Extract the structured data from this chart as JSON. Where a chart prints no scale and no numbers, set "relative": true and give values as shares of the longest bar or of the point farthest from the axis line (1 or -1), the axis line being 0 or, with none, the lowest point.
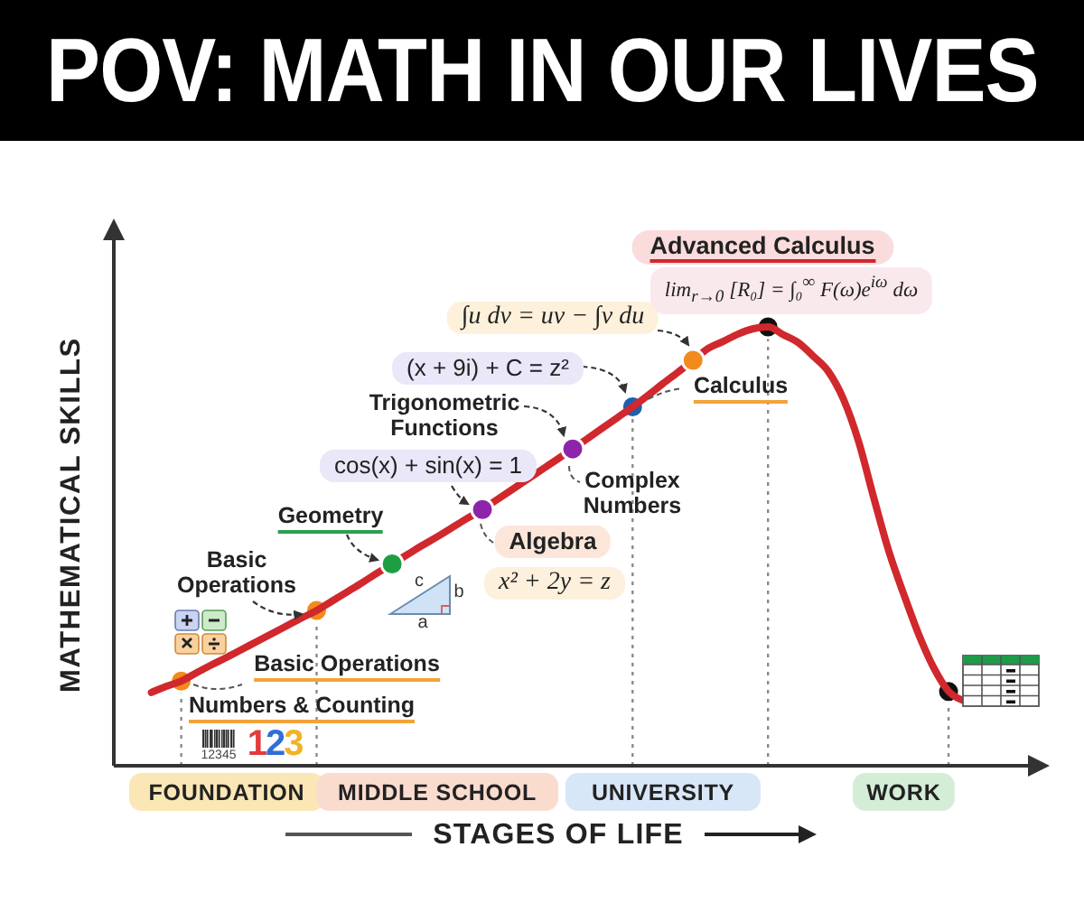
{
  "chart_data": {
    "type": "line",
    "title": "POV: MATH IN OUR LIVES",
    "xlabel": "STAGES OF LIFE",
    "ylabel": "MATHEMATICAL SKILLS",
    "relative": true,
    "categories": [
      null,
      null,
      null,
      null,
      null,
      null,
      null,
      "FOUNDATION",
      null,
      null,
      null,
      null,
      null,
      null,
      null,
      null,
      null,
      null,
      null,
      null,
      null,
      "MIDDLE SCHOOL",
      null,
      null,
      null,
      null,
      null,
      null,
      null,
      null,
      null,
      null,
      null,
      null,
      null,
      null,
      "UNIVERSITY",
      null,
      null,
      null,
      null,
      null,
      null,
      null,
      null,
      null,
      null,
      null,
      null,
      null,
      null,
      null,
      "WORK",
      null,
      null,
      null,
      null,
      null,
      null,
      null,
      null
    ],
    "series": [
      {
        "color": "#d0282c",
        "values": [
          null,
          null,
          0.167,
          0.181,
          0.193,
          0.212,
          0.23,
          0.247,
          0.265,
          0.283,
          0.301,
          0.319,
          0.337,
          0.354,
          0.375,
          0.396,
          0.417,
          0.439,
          0.46,
          0.481,
          0.502,
          0.522,
          0.543,
          0.564,
          0.584,
          0.607,
          0.63,
          0.653,
          0.676,
          0.699,
          0.722,
          0.746,
          0.77,
          0.794,
          0.818,
          0.844,
          0.871,
          0.897,
          0.924,
          0.951,
          0.967,
          0.984,
          0.996,
          1,
          0.982,
          0.964,
          0.933,
          0.898,
          0.835,
          0.739,
          0.612,
          0.49,
          0.391,
          0.299,
          0.223,
          0.169,
          0.148,
          null,
          null,
          null,
          null
        ]
      },
      {
        "type": "lollipop",
        "marker": "circle",
        "line_style": "dotted",
        "values": [
          null,
          null,
          null,
          null,
          0.193,
          null,
          null,
          null,
          null,
          null,
          null,
          null,
          null,
          0.354,
          null,
          null,
          null,
          null,
          null,
          null,
          null,
          null,
          null,
          null,
          null,
          null,
          null,
          null,
          null,
          null,
          null,
          null,
          null,
          null,
          0.818,
          null,
          null,
          null,
          null,
          null,
          null,
          null,
          null,
          1,
          null,
          null,
          null,
          null,
          null,
          null,
          null,
          null,
          null,
          null,
          null,
          0.169,
          null,
          null,
          null,
          null,
          null
        ],
        "colors": [
          null,
          null,
          null,
          null,
          "#f28a1c",
          null,
          null,
          null,
          null,
          null,
          null,
          null,
          null,
          "#f28a1c",
          null,
          null,
          null,
          null,
          null,
          null,
          null,
          null,
          null,
          null,
          null,
          null,
          null,
          null,
          null,
          null,
          null,
          null,
          null,
          null,
          "#1f5fae",
          null,
          null,
          null,
          null,
          null,
          null,
          null,
          null,
          "#111111",
          null,
          null,
          null,
          null,
          null,
          null,
          null,
          null,
          null,
          null,
          null,
          "#111111",
          null,
          null,
          null,
          null,
          null
        ]
      },
      {
        "type": "scatter",
        "marker": "circle",
        "values": [
          null,
          null,
          null,
          null,
          null,
          null,
          null,
          null,
          null,
          null,
          null,
          null,
          null,
          null,
          null,
          null,
          null,
          null,
          0.46,
          null,
          null,
          null,
          null,
          null,
          0.584,
          null,
          null,
          null,
          null,
          null,
          0.722,
          null,
          null,
          null,
          null,
          null,
          null,
          null,
          0.924,
          null,
          null,
          null,
          null,
          null,
          null,
          null,
          null,
          null,
          null,
          null,
          null,
          null,
          null,
          null,
          null,
          null,
          null,
          null,
          null,
          null,
          null
        ],
        "colors": [
          null,
          null,
          null,
          null,
          null,
          null,
          null,
          null,
          null,
          null,
          null,
          null,
          null,
          null,
          null,
          null,
          null,
          null,
          "#1e9e44",
          null,
          null,
          null,
          null,
          null,
          "#8e24aa",
          null,
          null,
          null,
          null,
          null,
          "#8e24aa",
          null,
          null,
          null,
          null,
          null,
          null,
          null,
          "#f28a1c",
          null,
          null,
          null,
          null,
          null,
          null,
          null,
          null,
          null,
          null,
          null,
          null,
          null,
          null,
          null,
          null,
          null,
          null,
          null,
          null,
          null,
          null
        ]
      }
    ],
    "annotations": [
      "Basic Operations",
      "Geometry",
      "Trigonometric Functions",
      "cos(x) + sin(x) = 1",
      "(x + 9i) + C = z²",
      "∫u dv = uv − ∫v du",
      "Advanced Calculus",
      "lim$_{r→0}$ [R₀] = ∫₀$^{∞}$ F(ω)e$^{iω}$ dω",
      "Calculus",
      "Complex Numbers",
      "Algebra",
      "x² + 2y = z",
      "Basic Operations",
      "Numbers & Counting",
      "12345",
      "123",
      "c",
      "b",
      "a"
    ]
  }
}
